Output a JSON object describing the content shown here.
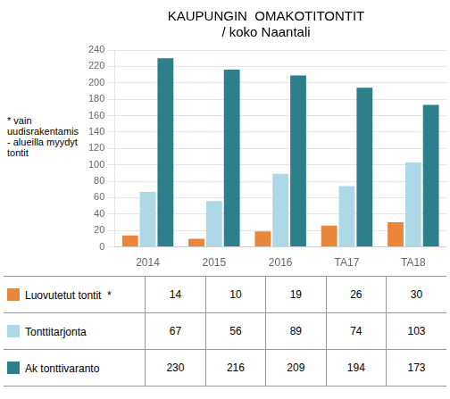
{
  "chart_data": {
    "type": "bar",
    "title": "KAUPUNGIN  OMAKOTITONTIT\n/ koko Naantali",
    "categories": [
      "2014",
      "2015",
      "2016",
      "TA17",
      "TA18"
    ],
    "series": [
      {
        "name": "Luovutetut tontit  *",
        "color": "#E8873A",
        "values": [
          14,
          10,
          19,
          26,
          30
        ]
      },
      {
        "name": "Tonttitarjonta",
        "color": "#ADD8E6",
        "values": [
          67,
          56,
          89,
          74,
          103
        ]
      },
      {
        "name": "Ak tonttivaranto",
        "color": "#2E7F8C",
        "values": [
          230,
          216,
          209,
          194,
          173
        ]
      }
    ],
    "ylim": [
      0,
      240
    ],
    "yticks": [
      0,
      20,
      40,
      60,
      80,
      100,
      120,
      140,
      160,
      180,
      200,
      220,
      240
    ],
    "annotation": "* vain\nuudisrakentamis\n- alueilla myydyt\ntontit",
    "grid": true,
    "legend": "bottom"
  }
}
